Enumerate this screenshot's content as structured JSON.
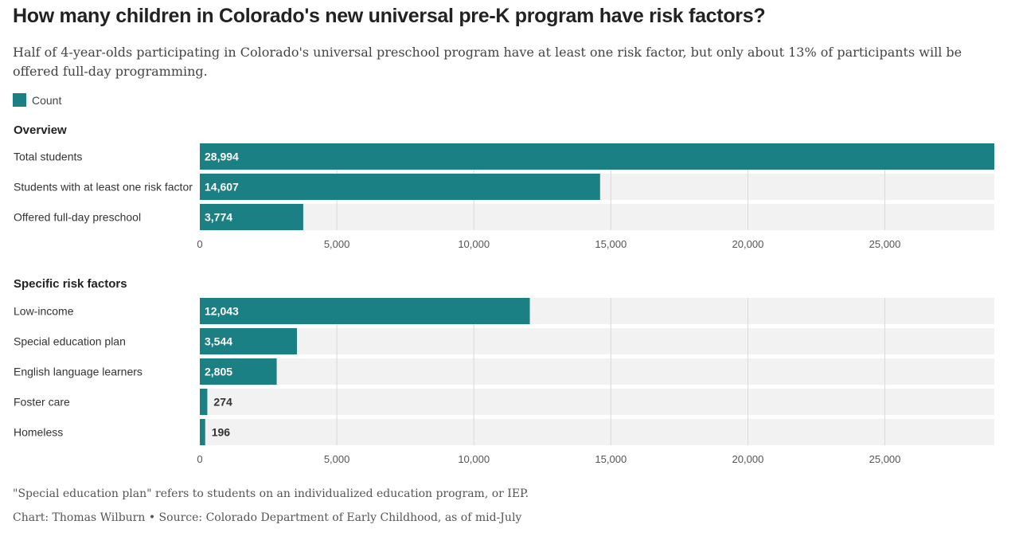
{
  "title": "How many children in Colorado's new universal pre-K program have risk factors?",
  "subtitle": "Half of 4-year-olds participating in Colorado's universal preschool program have at least one risk factor, but only about 13% of participants will be offered full-day programming.",
  "legend": {
    "label": "Count",
    "color": "#1a8083"
  },
  "colors": {
    "bar": "#1a8083",
    "track": "#f2f2f2",
    "grid": "#d9d9d9"
  },
  "chart_data": [
    {
      "type": "bar",
      "orientation": "horizontal",
      "title": "Overview",
      "categories": [
        "Total students",
        "Students with at least one risk factor",
        "Offered full-day preschool"
      ],
      "series": [
        {
          "name": "Count",
          "values": [
            28994,
            14607,
            3774
          ]
        }
      ],
      "data_labels": [
        "28,994",
        "14,607",
        "3,774"
      ],
      "xlim": [
        0,
        28994
      ],
      "xticks": [
        0,
        5000,
        10000,
        15000,
        20000,
        25000
      ],
      "xtick_labels": [
        "0",
        "5,000",
        "10,000",
        "15,000",
        "20,000",
        "25,000"
      ],
      "grid": true
    },
    {
      "type": "bar",
      "orientation": "horizontal",
      "title": "Specific risk factors",
      "categories": [
        "Low-income",
        "Special education plan",
        "English language learners",
        "Foster care",
        "Homeless"
      ],
      "series": [
        {
          "name": "Count",
          "values": [
            12043,
            3544,
            2805,
            274,
            196
          ]
        }
      ],
      "data_labels": [
        "12,043",
        "3,544",
        "2,805",
        "274",
        "196"
      ],
      "xlim": [
        0,
        28994
      ],
      "xticks": [
        0,
        5000,
        10000,
        15000,
        20000,
        25000
      ],
      "xtick_labels": [
        "0",
        "5,000",
        "10,000",
        "15,000",
        "20,000",
        "25,000"
      ],
      "grid": true
    }
  ],
  "notes": {
    "footnote": "\"Special education plan\" refers to students on an individualized education program, or IEP.",
    "credit": "Chart: Thomas Wilburn • Source: Colorado Department of Early Childhood, as of mid-July"
  }
}
